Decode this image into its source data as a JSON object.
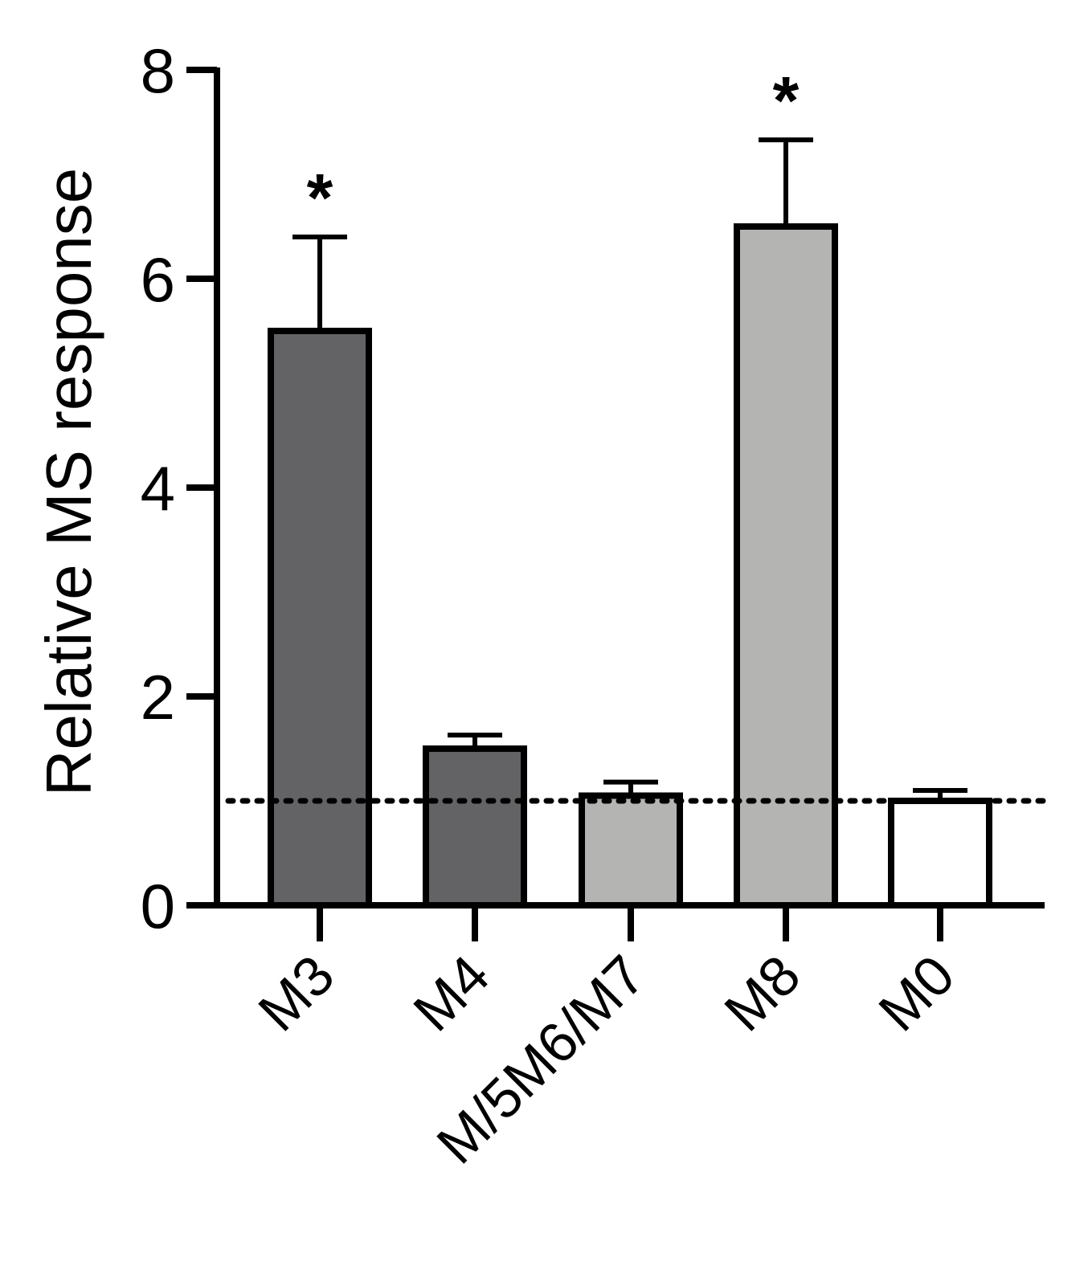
{
  "chart_data": {
    "type": "bar",
    "title": "",
    "xlabel": "",
    "ylabel": "Relative MS response",
    "ylim": [
      0,
      8
    ],
    "yticks": [
      "0",
      "2",
      "4",
      "6",
      "8"
    ],
    "categories": [
      "M3",
      "M4",
      "M/5M6/M7",
      "M8",
      "M0"
    ],
    "values": [
      5.5,
      1.5,
      1.05,
      6.5,
      1.0
    ],
    "errors": [
      0.9,
      0.13,
      0.13,
      0.83,
      0.1
    ],
    "significance": [
      "*",
      "",
      "",
      "*",
      ""
    ],
    "bar_colors": [
      "#636365",
      "#636365",
      "#b4b5b3",
      "#b4b5b3",
      "#ffffff"
    ],
    "reference_line": 1.0,
    "grid": false,
    "legend": "none"
  }
}
